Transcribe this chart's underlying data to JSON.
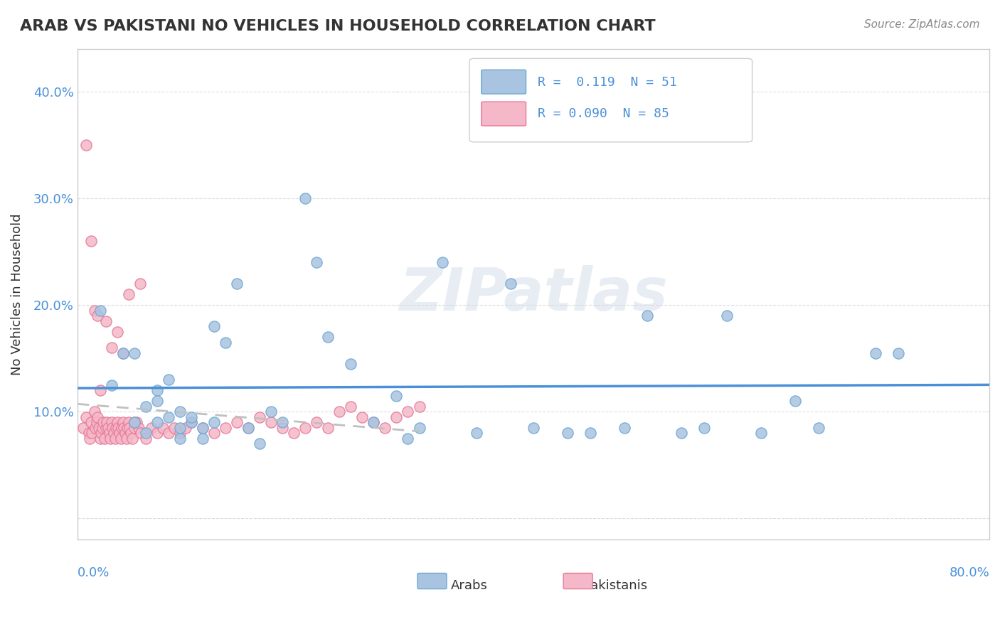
{
  "title": "ARAB VS PAKISTANI NO VEHICLES IN HOUSEHOLD CORRELATION CHART",
  "source": "Source: ZipAtlas.com",
  "ylabel": "No Vehicles in Household",
  "ytick_labels": [
    "",
    "10.0%",
    "20.0%",
    "30.0%",
    "40.0%"
  ],
  "ytick_values": [
    0,
    0.1,
    0.2,
    0.3,
    0.4
  ],
  "xlim": [
    0.0,
    0.8
  ],
  "ylim": [
    -0.02,
    0.44
  ],
  "arab_R": "0.119",
  "arab_N": "51",
  "pak_R": "0.090",
  "pak_N": "85",
  "arab_color": "#a8c4e0",
  "arab_color_dark": "#6fa8d4",
  "pak_color": "#f4b8c8",
  "pak_color_dark": "#e87898",
  "trend_arab_color": "#4a90d9",
  "trend_pak_color": "#c0c0c0",
  "background_color": "#ffffff",
  "watermark": "ZIPatlas",
  "arab_x": [
    0.02,
    0.03,
    0.04,
    0.05,
    0.05,
    0.06,
    0.06,
    0.07,
    0.07,
    0.07,
    0.08,
    0.08,
    0.09,
    0.09,
    0.09,
    0.1,
    0.1,
    0.11,
    0.11,
    0.12,
    0.12,
    0.13,
    0.14,
    0.15,
    0.16,
    0.17,
    0.18,
    0.2,
    0.21,
    0.22,
    0.24,
    0.26,
    0.28,
    0.29,
    0.3,
    0.32,
    0.35,
    0.38,
    0.4,
    0.43,
    0.45,
    0.48,
    0.5,
    0.53,
    0.55,
    0.57,
    0.6,
    0.63,
    0.65,
    0.7,
    0.72
  ],
  "arab_y": [
    0.195,
    0.125,
    0.155,
    0.155,
    0.09,
    0.08,
    0.105,
    0.12,
    0.09,
    0.11,
    0.13,
    0.095,
    0.1,
    0.085,
    0.075,
    0.09,
    0.095,
    0.085,
    0.075,
    0.18,
    0.09,
    0.165,
    0.22,
    0.085,
    0.07,
    0.1,
    0.09,
    0.3,
    0.24,
    0.17,
    0.145,
    0.09,
    0.115,
    0.075,
    0.085,
    0.24,
    0.08,
    0.22,
    0.085,
    0.08,
    0.08,
    0.085,
    0.19,
    0.08,
    0.085,
    0.19,
    0.08,
    0.11,
    0.085,
    0.155,
    0.155
  ],
  "pak_x": [
    0.005,
    0.008,
    0.01,
    0.011,
    0.012,
    0.013,
    0.015,
    0.016,
    0.017,
    0.018,
    0.019,
    0.02,
    0.021,
    0.022,
    0.023,
    0.024,
    0.025,
    0.026,
    0.027,
    0.028,
    0.029,
    0.03,
    0.031,
    0.032,
    0.033,
    0.034,
    0.035,
    0.036,
    0.037,
    0.038,
    0.039,
    0.04,
    0.041,
    0.042,
    0.043,
    0.044,
    0.045,
    0.046,
    0.047,
    0.048,
    0.05,
    0.052,
    0.054,
    0.056,
    0.06,
    0.065,
    0.07,
    0.075,
    0.08,
    0.085,
    0.09,
    0.095,
    0.1,
    0.11,
    0.12,
    0.13,
    0.14,
    0.15,
    0.16,
    0.17,
    0.18,
    0.19,
    0.2,
    0.21,
    0.22,
    0.23,
    0.24,
    0.25,
    0.26,
    0.27,
    0.28,
    0.29,
    0.3,
    0.015,
    0.025,
    0.035,
    0.008,
    0.045,
    0.055,
    0.02,
    0.012,
    0.018,
    0.03,
    0.04,
    0.05
  ],
  "pak_y": [
    0.085,
    0.095,
    0.08,
    0.075,
    0.09,
    0.08,
    0.1,
    0.085,
    0.09,
    0.095,
    0.085,
    0.075,
    0.08,
    0.085,
    0.09,
    0.075,
    0.085,
    0.09,
    0.085,
    0.08,
    0.075,
    0.09,
    0.085,
    0.08,
    0.075,
    0.085,
    0.09,
    0.085,
    0.08,
    0.075,
    0.085,
    0.09,
    0.085,
    0.08,
    0.075,
    0.085,
    0.09,
    0.085,
    0.08,
    0.075,
    0.085,
    0.09,
    0.085,
    0.08,
    0.075,
    0.085,
    0.08,
    0.085,
    0.08,
    0.085,
    0.08,
    0.085,
    0.09,
    0.085,
    0.08,
    0.085,
    0.09,
    0.085,
    0.095,
    0.09,
    0.085,
    0.08,
    0.085,
    0.09,
    0.085,
    0.1,
    0.105,
    0.095,
    0.09,
    0.085,
    0.095,
    0.1,
    0.105,
    0.195,
    0.185,
    0.175,
    0.35,
    0.21,
    0.22,
    0.12,
    0.26,
    0.19,
    0.16,
    0.155,
    0.09
  ]
}
